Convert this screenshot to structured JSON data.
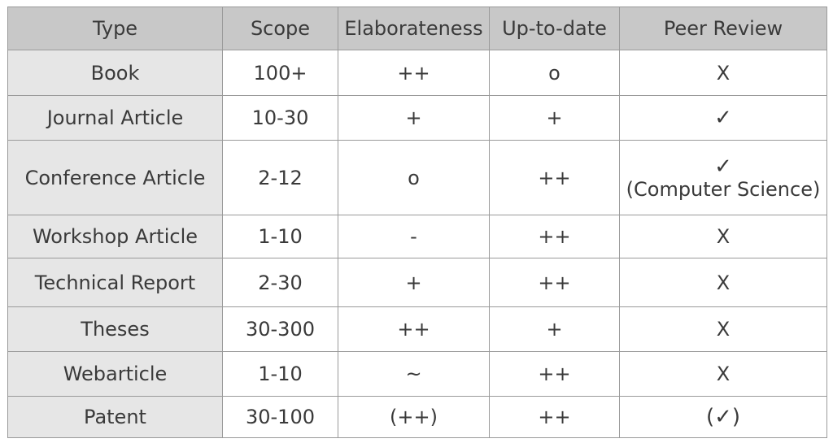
{
  "table": {
    "headers": [
      "Type",
      "Scope",
      "Elaborateness",
      "Up-to-date",
      "Peer Review"
    ],
    "rows": [
      {
        "type": "Book",
        "scope": "100+",
        "elaborateness": "++",
        "uptodate": "o",
        "peer_review": "X",
        "peer_review_note": ""
      },
      {
        "type": "Journal Article",
        "scope": "10-30",
        "elaborateness": "+",
        "uptodate": "+",
        "peer_review": "✓",
        "peer_review_note": ""
      },
      {
        "type": "Conference Article",
        "scope": "2-12",
        "elaborateness": "o",
        "uptodate": "++",
        "peer_review": "✓",
        "peer_review_note": "(Computer Science)"
      },
      {
        "type": "Workshop Article",
        "scope": "1-10",
        "elaborateness": "-",
        "uptodate": "++",
        "peer_review": "X",
        "peer_review_note": ""
      },
      {
        "type": "Technical Report",
        "scope": "2-30",
        "elaborateness": "+",
        "uptodate": "++",
        "peer_review": "X",
        "peer_review_note": ""
      },
      {
        "type": "Theses",
        "scope": "30-300",
        "elaborateness": "++",
        "uptodate": "+",
        "peer_review": "X",
        "peer_review_note": ""
      },
      {
        "type": "Webarticle",
        "scope": "1-10",
        "elaborateness": "~",
        "uptodate": "++",
        "peer_review": "X",
        "peer_review_note": ""
      },
      {
        "type": "Patent",
        "scope": "30-100",
        "elaborateness": "(++)",
        "uptodate": "++",
        "peer_review": "(✓)",
        "peer_review_note": ""
      }
    ]
  },
  "colors": {
    "header_bg": "#c8c8c8",
    "type_column_bg": "#e6e6e6",
    "cell_bg": "#ffffff",
    "border": "#9a9a9a",
    "text": "#3a3a3a"
  }
}
